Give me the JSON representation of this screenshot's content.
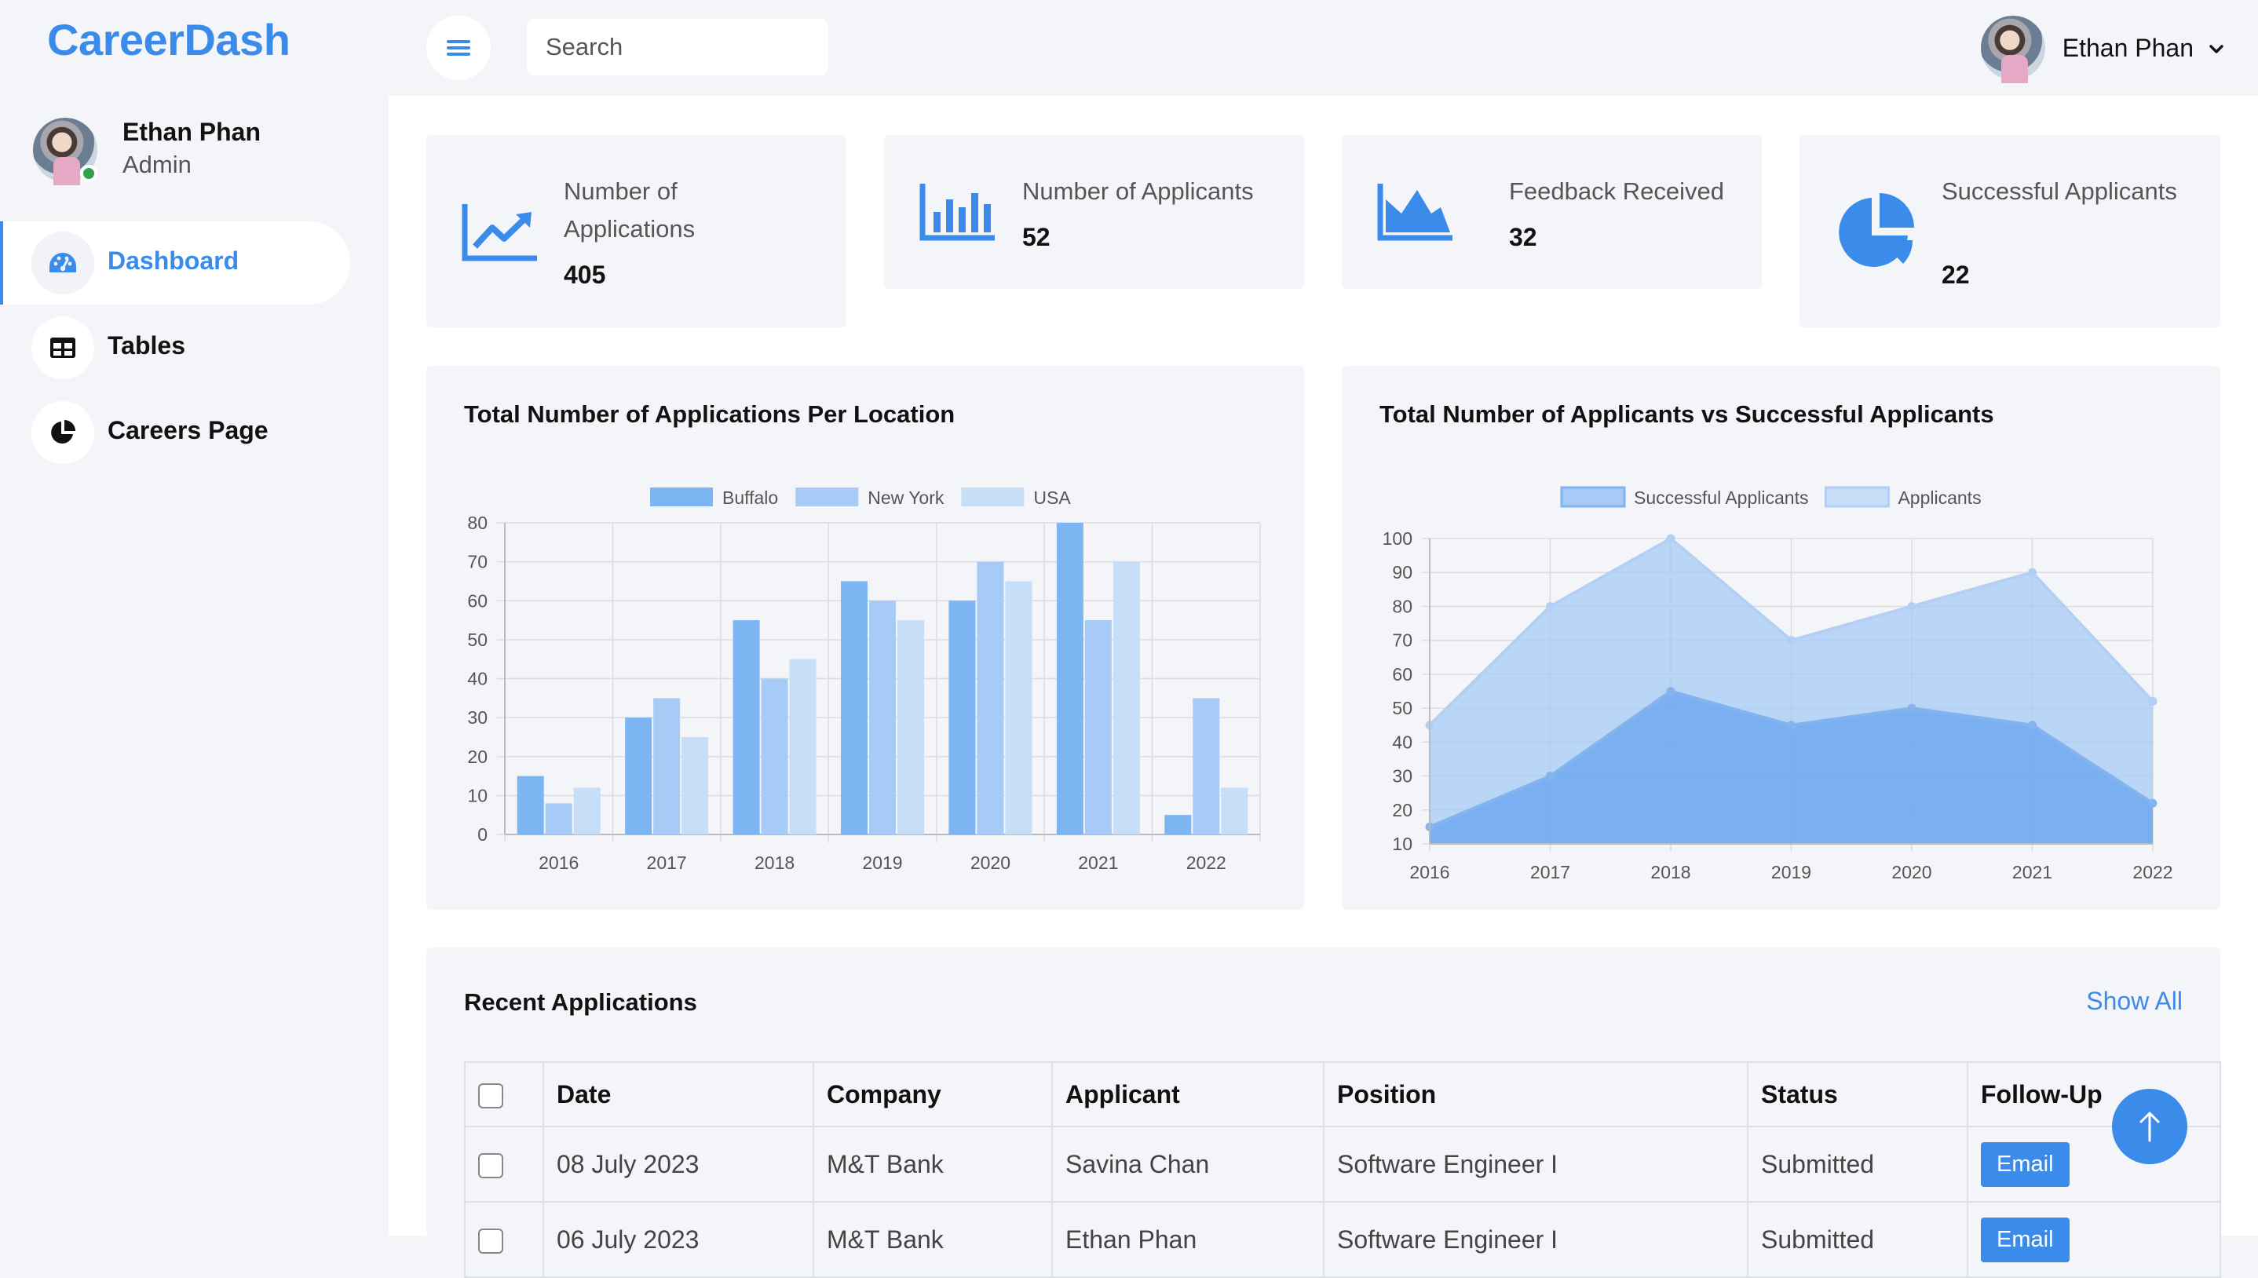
{
  "brand": "CareerDash",
  "profile": {
    "name": "Ethan Phan",
    "role": "Admin"
  },
  "nav": [
    {
      "label": "Dashboard",
      "icon": "gauge-icon",
      "active": true
    },
    {
      "label": "Tables",
      "icon": "table-icon",
      "active": false
    },
    {
      "label": "Careers Page",
      "icon": "pie-chart-icon",
      "active": false
    }
  ],
  "topbar": {
    "search_placeholder": "Search",
    "user_name": "Ethan Phan"
  },
  "stats": [
    {
      "label": "Number of Applications",
      "value": "405",
      "icon": "line-chart-icon"
    },
    {
      "label": "Number of Applicants",
      "value": "52",
      "icon": "bar-chart-icon"
    },
    {
      "label": "Feedback Received",
      "value": "32",
      "icon": "area-chart-icon"
    },
    {
      "label": "Successful Applicants",
      "value": "22",
      "icon": "pie-chart-icon"
    }
  ],
  "colors": {
    "accent": "#3b8bea",
    "bar1": "#7cb5f2",
    "bar2": "#a5cbf6",
    "bar3": "#c7def9"
  },
  "chart_data": [
    {
      "type": "bar",
      "title": "Total Number of Applications Per Location",
      "categories": [
        "2016",
        "2017",
        "2018",
        "2019",
        "2020",
        "2021",
        "2022"
      ],
      "series": [
        {
          "name": "Buffalo",
          "values": [
            15,
            30,
            55,
            65,
            60,
            80,
            5
          ]
        },
        {
          "name": "New York",
          "values": [
            8,
            35,
            40,
            60,
            70,
            55,
            35
          ]
        },
        {
          "name": "USA",
          "values": [
            12,
            25,
            45,
            55,
            65,
            70,
            12
          ]
        }
      ],
      "ylim": [
        0,
        80
      ],
      "yticks": [
        0,
        10,
        20,
        30,
        40,
        50,
        60,
        70,
        80
      ],
      "legend": "top",
      "grid": true
    },
    {
      "type": "area",
      "title": "Total Number of Applicants vs Successful Applicants",
      "categories": [
        "2016",
        "2017",
        "2018",
        "2019",
        "2020",
        "2021",
        "2022"
      ],
      "series": [
        {
          "name": "Successful Applicants",
          "values": [
            15,
            30,
            55,
            45,
            50,
            45,
            22
          ]
        },
        {
          "name": "Applicants",
          "values": [
            45,
            80,
            100,
            70,
            80,
            90,
            52
          ]
        }
      ],
      "ylim": [
        10,
        100
      ],
      "yticks": [
        10,
        20,
        30,
        40,
        50,
        60,
        70,
        80,
        90,
        100
      ],
      "legend": "top",
      "grid": true
    }
  ],
  "recent": {
    "title": "Recent Applications",
    "show_all": "Show All",
    "columns": [
      "Date",
      "Company",
      "Applicant",
      "Position",
      "Status",
      "Follow-Up"
    ],
    "rows": [
      {
        "date": "08 July 2023",
        "company": "M&T Bank",
        "applicant": "Savina Chan",
        "position": "Software Engineer I",
        "status": "Submitted",
        "action": "Email"
      },
      {
        "date": "06 July 2023",
        "company": "M&T Bank",
        "applicant": "Ethan Phan",
        "position": "Software Engineer I",
        "status": "Submitted",
        "action": "Email"
      }
    ]
  }
}
